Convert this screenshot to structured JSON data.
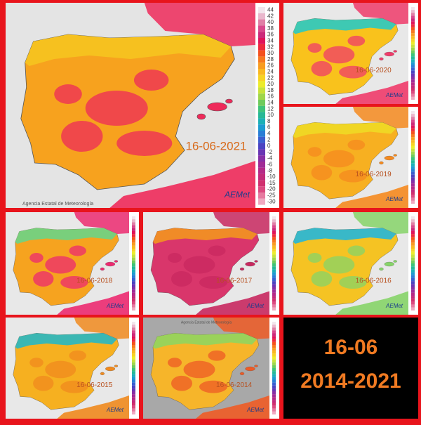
{
  "panels": [
    {
      "date": "16-06-2021",
      "agency": "Agencia Estatal de Meteorología",
      "logo": "AEMet",
      "legend": [
        "44",
        "42",
        "40",
        "38",
        "36",
        "34",
        "32",
        "30",
        "28",
        "26",
        "24",
        "22",
        "20",
        "18",
        "16",
        "14",
        "12",
        "10",
        "8",
        "6",
        "4",
        "2",
        "0",
        "-2",
        "-4",
        "-6",
        "-8",
        "-10",
        "-15",
        "-20",
        "-25",
        "-30"
      ]
    },
    {
      "date": "16-06-2020",
      "logo": "AEMet"
    },
    {
      "date": "16-06-2019",
      "logo": "AEMet"
    },
    {
      "date": "16-06-2018",
      "logo": "AEMet"
    },
    {
      "date": "16-06-2017",
      "logo": "AEMet"
    },
    {
      "date": "16-06-2016",
      "logo": "AEMet"
    },
    {
      "date": "16-06-2015",
      "logo": "AEMet"
    },
    {
      "date": "16-06-2014",
      "logo": "AEMet",
      "agency": "Agencia Estatal de Meteorología"
    }
  ],
  "summary": {
    "line1": "16-06",
    "line2": "2014-2021"
  }
}
